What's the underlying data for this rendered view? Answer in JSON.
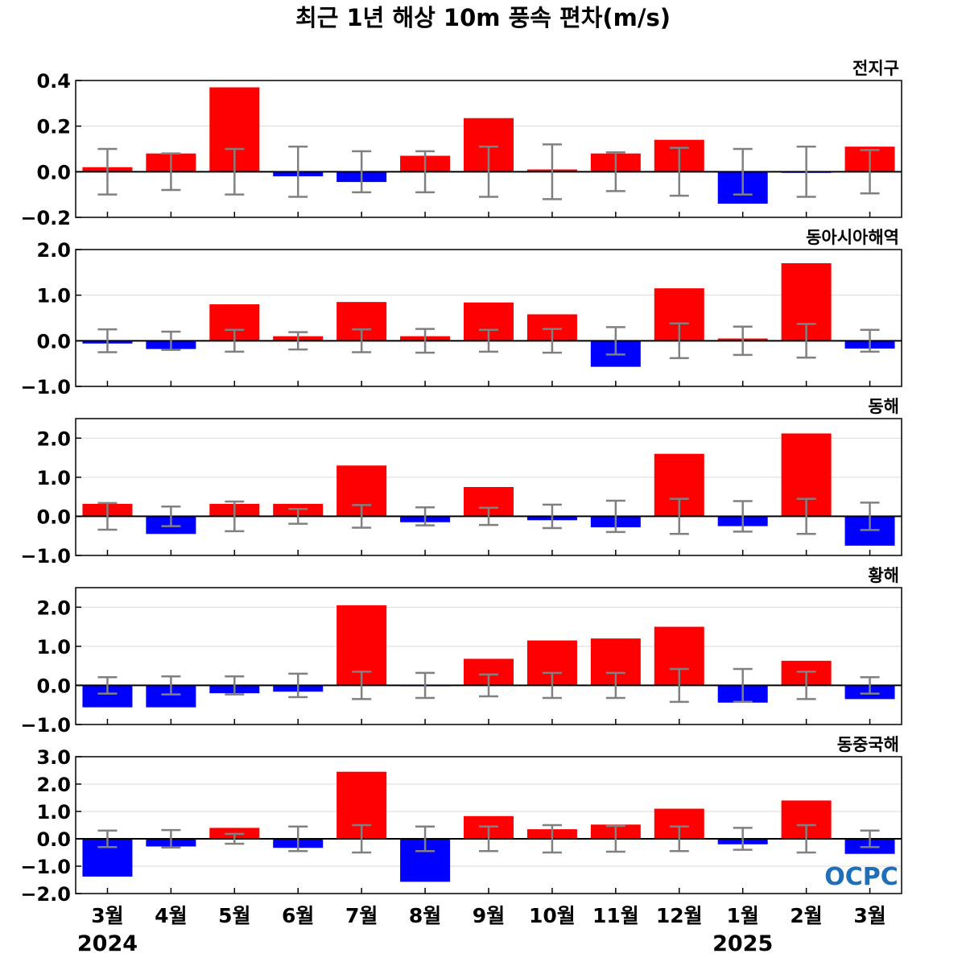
{
  "chart_data": {
    "type": "bar",
    "title": "최근 1년 해상 10m 풍속 편차(m/s)",
    "categories": [
      "3월",
      "4월",
      "5월",
      "6월",
      "7월",
      "8월",
      "9월",
      "10월",
      "11월",
      "12월",
      "1월",
      "2월",
      "3월"
    ],
    "year_labels": [
      {
        "index": 0,
        "text": "2024"
      },
      {
        "index": 10,
        "text": "2025"
      }
    ],
    "colors": {
      "positive": "#ff0000",
      "negative": "#0000ff",
      "error_bar": "#808080",
      "zero_line": "#000000",
      "grid": "#d9d9d9"
    },
    "grid": true,
    "logo": {
      "text": "OCPC",
      "color": "#1e6fb8"
    },
    "panels": [
      {
        "label": "전지구",
        "ylim": [
          -0.2,
          0.4
        ],
        "yticks": [
          -0.2,
          0.0,
          0.2,
          0.4
        ],
        "ytick_labels": [
          "−0.2",
          "0.0",
          "0.2",
          "0.4"
        ],
        "values": [
          0.02,
          0.08,
          0.37,
          -0.02,
          -0.045,
          0.07,
          0.235,
          0.01,
          0.08,
          0.14,
          -0.14,
          -0.005,
          0.11
        ],
        "errors": [
          0.1,
          0.08,
          0.1,
          0.11,
          0.09,
          0.09,
          0.11,
          0.12,
          0.085,
          0.105,
          0.1,
          0.11,
          0.095
        ]
      },
      {
        "label": "동아시아해역",
        "ylim": [
          -1.0,
          2.0
        ],
        "yticks": [
          -1.0,
          0.0,
          1.0,
          2.0
        ],
        "ytick_labels": [
          "−1.0",
          "0.0",
          "1.0",
          "2.0"
        ],
        "values": [
          -0.06,
          -0.18,
          0.8,
          0.1,
          0.85,
          0.1,
          0.84,
          0.58,
          -0.57,
          1.15,
          0.05,
          1.7,
          -0.17
        ],
        "errors": [
          0.25,
          0.2,
          0.24,
          0.19,
          0.25,
          0.26,
          0.24,
          0.26,
          0.3,
          0.38,
          0.31,
          0.37,
          0.24
        ]
      },
      {
        "label": "동해",
        "ylim": [
          -1.0,
          2.5
        ],
        "yticks": [
          -1.0,
          0.0,
          1.0,
          2.0
        ],
        "ytick_labels": [
          "−1.0",
          "0.0",
          "1.0",
          "2.0"
        ],
        "values": [
          0.32,
          -0.45,
          0.32,
          0.32,
          1.3,
          -0.15,
          0.75,
          -0.1,
          -0.28,
          1.6,
          -0.25,
          2.12,
          -0.75
        ],
        "errors": [
          0.34,
          0.25,
          0.38,
          0.19,
          0.29,
          0.23,
          0.22,
          0.3,
          0.4,
          0.45,
          0.39,
          0.45,
          0.35
        ]
      },
      {
        "label": "황해",
        "ylim": [
          -1.0,
          2.5
        ],
        "yticks": [
          -1.0,
          0.0,
          1.0,
          2.0
        ],
        "ytick_labels": [
          "−1.0",
          "0.0",
          "1.0",
          "2.0"
        ],
        "values": [
          -0.56,
          -0.56,
          -0.2,
          -0.16,
          2.05,
          -0.02,
          0.68,
          1.15,
          1.2,
          1.5,
          -0.44,
          0.63,
          -0.35
        ],
        "errors": [
          0.21,
          0.23,
          0.23,
          0.3,
          0.35,
          0.32,
          0.28,
          0.32,
          0.32,
          0.42,
          0.42,
          0.35,
          0.21
        ]
      },
      {
        "label": "동중국해",
        "ylim": [
          -2.0,
          3.0
        ],
        "yticks": [
          -2.0,
          -1.0,
          0.0,
          1.0,
          2.0,
          3.0
        ],
        "ytick_labels": [
          "−2.0",
          "−1.0",
          "0.0",
          "1.0",
          "2.0",
          "3.0"
        ],
        "values": [
          -1.38,
          -0.28,
          0.4,
          -0.33,
          2.45,
          -1.57,
          0.83,
          0.35,
          0.52,
          1.1,
          -0.2,
          1.4,
          -0.55
        ],
        "errors": [
          0.3,
          0.32,
          0.18,
          0.45,
          0.5,
          0.45,
          0.45,
          0.5,
          0.47,
          0.45,
          0.4,
          0.5,
          0.3
        ]
      }
    ]
  }
}
